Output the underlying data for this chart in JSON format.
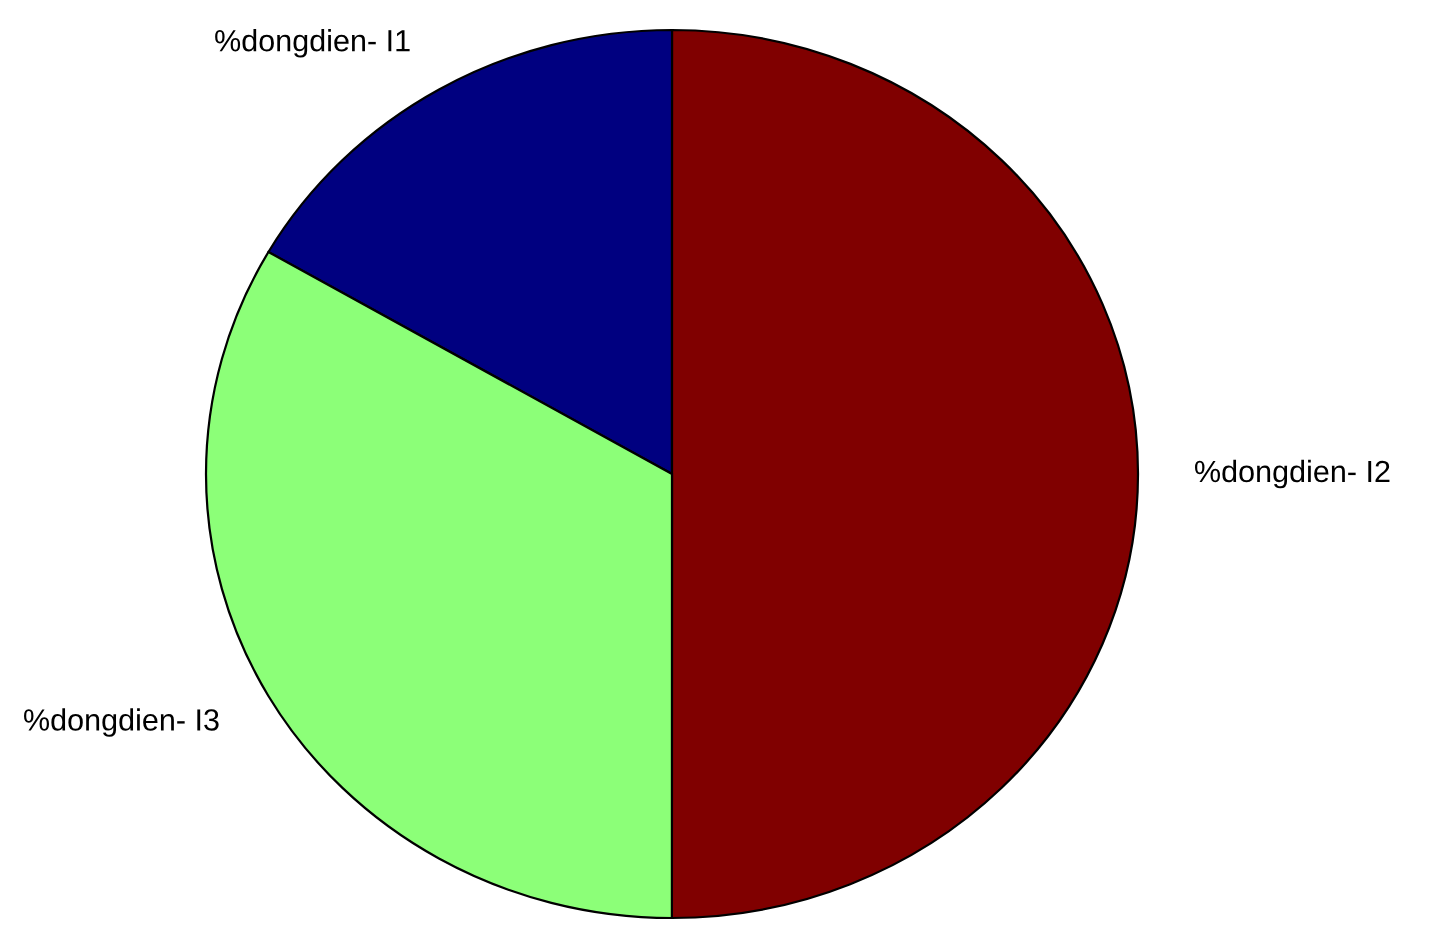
{
  "chart_data": {
    "type": "pie",
    "categories": [
      "%dongdien- I1",
      "%dongdien- I2",
      "%dongdien- I3"
    ],
    "values": [
      16.67,
      50,
      33.33
    ],
    "colors": [
      "#000080",
      "#800000",
      "#8cff78"
    ]
  }
}
